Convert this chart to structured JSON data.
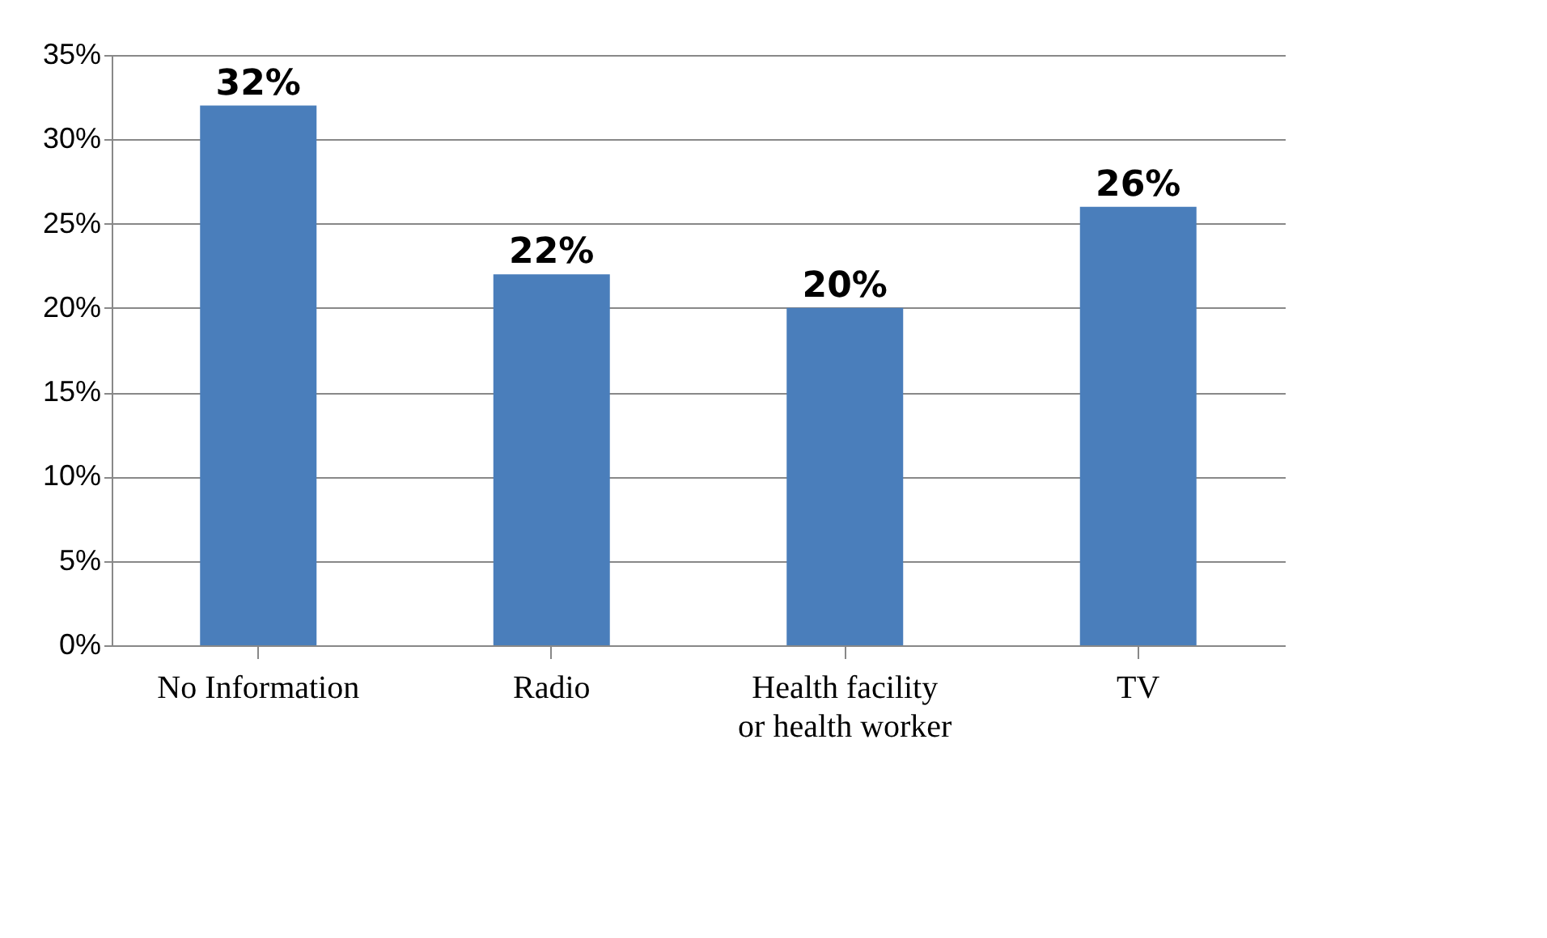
{
  "chart_data": {
    "type": "bar",
    "categories": [
      "No Information",
      "Radio",
      "Health facility or health worker",
      "TV"
    ],
    "values": [
      32,
      22,
      20,
      26
    ],
    "color": "#4a7ebb",
    "value_labels": [
      "32%",
      "22%",
      "20%",
      "26%"
    ],
    "ylim": [
      0,
      35
    ],
    "yticks": [
      {
        "value": 0,
        "label": "0%"
      },
      {
        "value": 5,
        "label": "5%"
      },
      {
        "value": 10,
        "label": "10%"
      },
      {
        "value": 15,
        "label": "15%"
      },
      {
        "value": 20,
        "label": "20%"
      },
      {
        "value": 25,
        "label": "25%"
      },
      {
        "value": 30,
        "label": "30%"
      },
      {
        "value": 35,
        "label": "35%"
      }
    ],
    "grid": "y"
  }
}
